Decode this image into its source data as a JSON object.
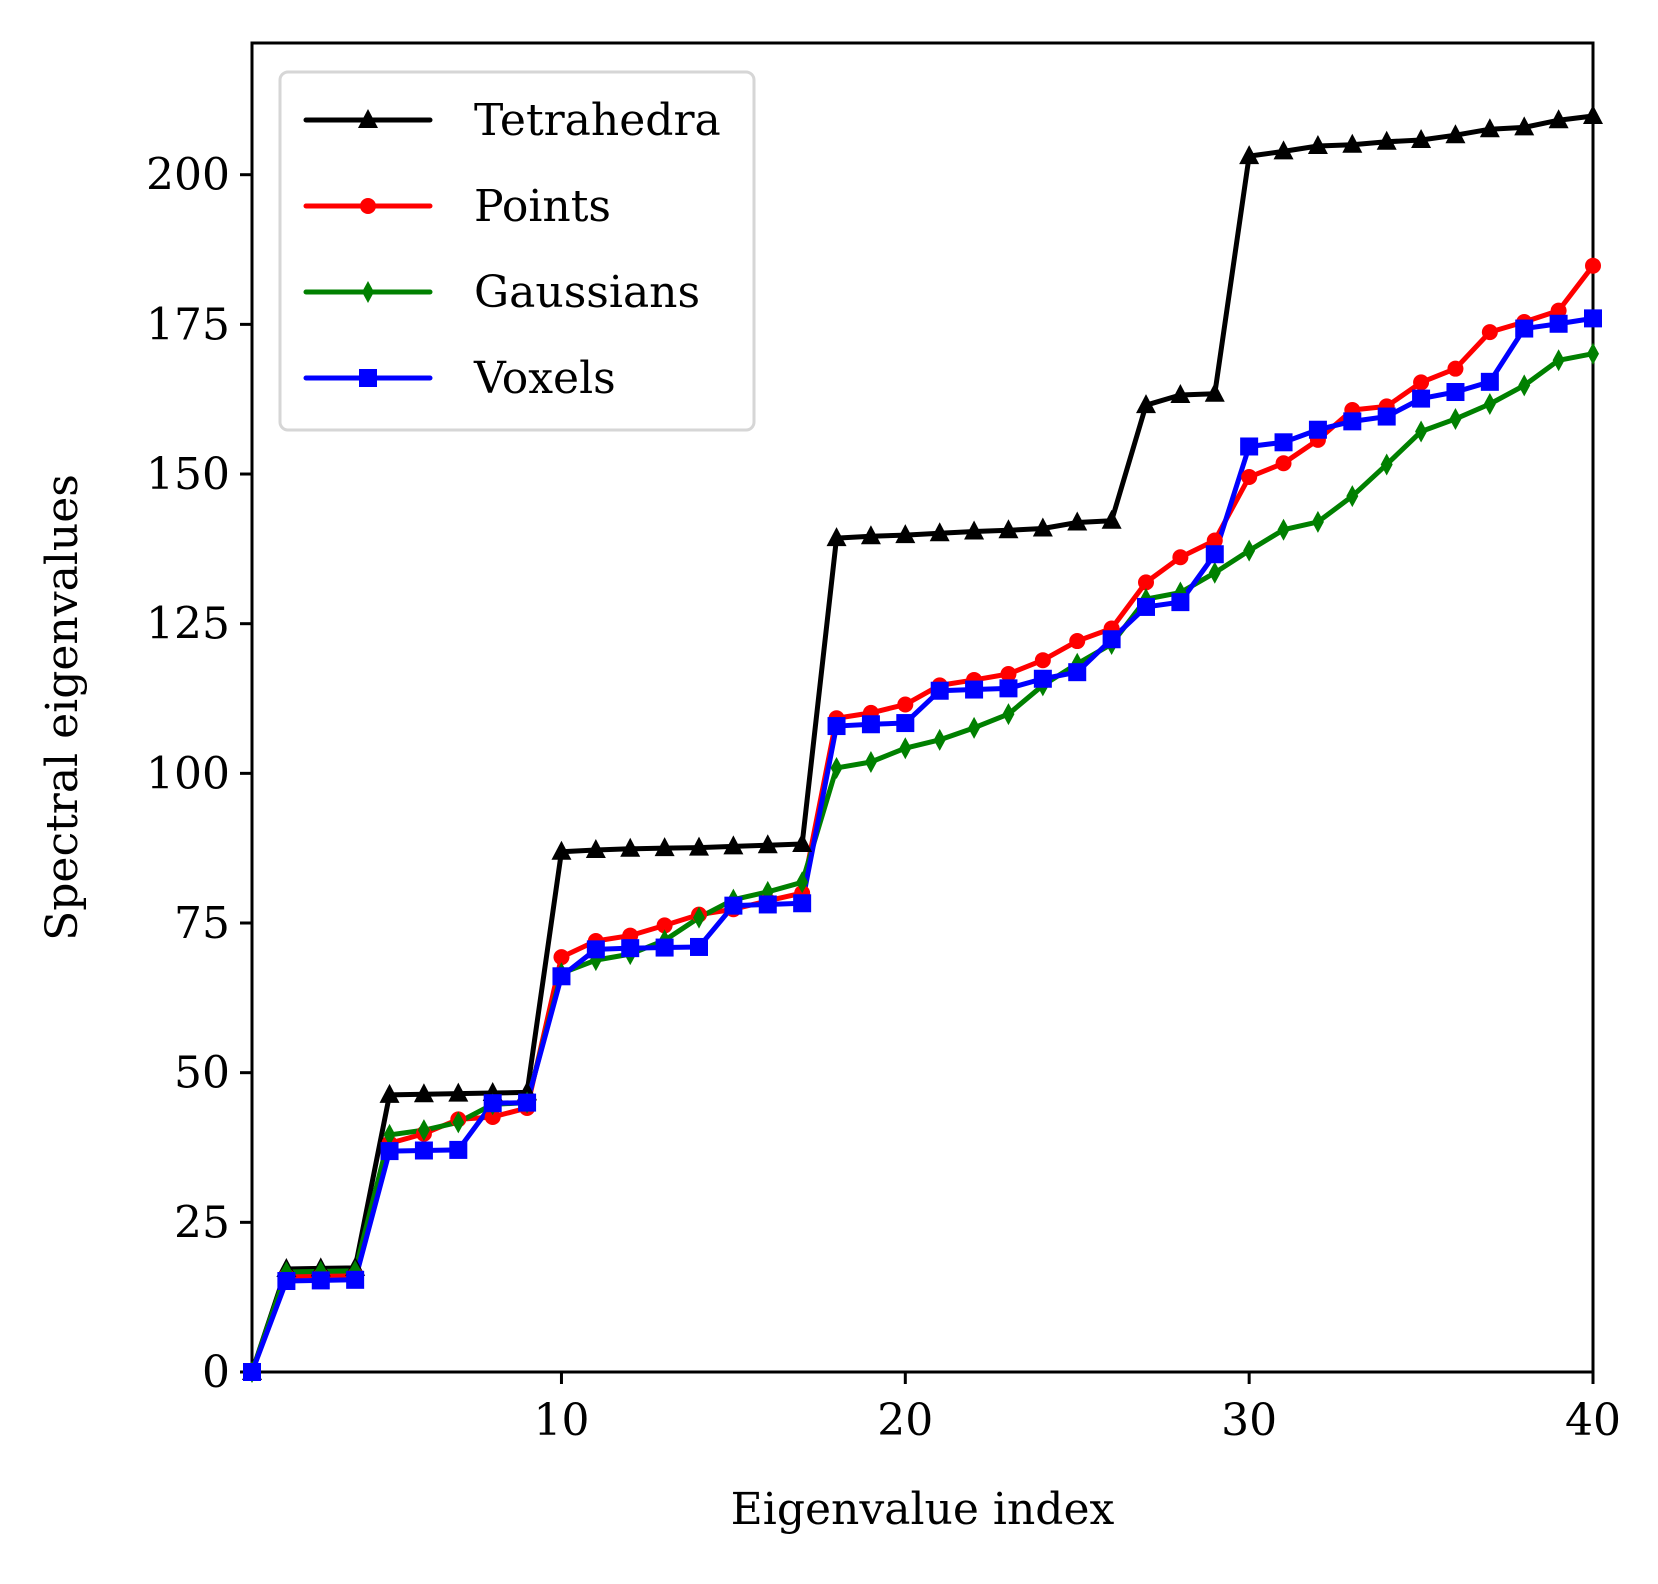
{
  "chart_data": {
    "type": "line",
    "title": "",
    "xlabel": "Eigenvalue index",
    "ylabel": "Spectral eigenvalues",
    "xlim": [
      1,
      40
    ],
    "ylim": [
      0,
      222
    ],
    "xticks": [
      10,
      20,
      30,
      40
    ],
    "yticks": [
      0,
      25,
      50,
      75,
      100,
      125,
      150,
      175,
      200
    ],
    "xtick_labels": [
      "10",
      "20",
      "30",
      "40"
    ],
    "ytick_labels": [
      "0",
      "25",
      "50",
      "75",
      "100",
      "125",
      "150",
      "175",
      "200"
    ],
    "legend_position": "top-left",
    "grid": false,
    "x": [
      1,
      2,
      3,
      4,
      5,
      6,
      7,
      8,
      9,
      10,
      11,
      12,
      13,
      14,
      15,
      16,
      17,
      18,
      19,
      20,
      21,
      22,
      23,
      24,
      25,
      26,
      27,
      28,
      29,
      30,
      31,
      32,
      33,
      34,
      35,
      36,
      37,
      38,
      39,
      40
    ],
    "series": [
      {
        "name": "Tetrahedra",
        "color": "#000000",
        "marker": "triangle",
        "values": [
          0.0,
          17.2,
          17.3,
          17.4,
          46.3,
          46.4,
          46.5,
          46.6,
          46.7,
          86.9,
          87.2,
          87.4,
          87.5,
          87.6,
          87.8,
          88.0,
          88.2,
          139.3,
          139.6,
          139.8,
          140.1,
          140.4,
          140.6,
          140.9,
          141.9,
          142.2,
          161.5,
          163.2,
          163.4,
          203.1,
          203.9,
          204.8,
          205.0,
          205.5,
          205.8,
          206.6,
          207.6,
          207.9,
          209.1,
          209.8
        ]
      },
      {
        "name": "Points",
        "color": "#ff0000",
        "marker": "circle",
        "values": [
          0.0,
          16.0,
          16.1,
          16.2,
          38.2,
          39.8,
          42.2,
          42.6,
          44.1,
          69.3,
          72.0,
          72.9,
          74.6,
          76.4,
          77.3,
          78.7,
          80.0,
          109.2,
          110.1,
          111.5,
          114.7,
          115.6,
          116.6,
          118.9,
          122.1,
          124.2,
          131.9,
          136.1,
          138.9,
          149.5,
          151.8,
          155.7,
          160.7,
          161.3,
          165.3,
          167.6,
          173.7,
          175.4,
          177.3,
          184.8
        ]
      },
      {
        "name": "Gaussians",
        "color": "#008000",
        "marker": "diamond",
        "values": [
          0.0,
          16.7,
          16.8,
          16.9,
          39.6,
          40.4,
          41.7,
          44.7,
          45.0,
          66.6,
          68.8,
          69.8,
          72.1,
          75.9,
          78.9,
          80.2,
          81.8,
          100.9,
          101.9,
          104.2,
          105.6,
          107.6,
          109.9,
          114.7,
          118.3,
          121.6,
          129.1,
          130.2,
          133.5,
          137.2,
          140.7,
          142.0,
          146.3,
          151.6,
          157.1,
          159.2,
          161.7,
          164.8,
          169.0,
          170.1
        ]
      },
      {
        "name": "Voxels",
        "color": "#0000ff",
        "marker": "square",
        "values": [
          0.0,
          15.2,
          15.3,
          15.4,
          36.9,
          37.0,
          37.1,
          44.9,
          45.0,
          66.1,
          70.6,
          70.8,
          70.9,
          71.0,
          77.9,
          78.1,
          78.3,
          107.9,
          108.2,
          108.4,
          113.8,
          114.0,
          114.2,
          115.8,
          116.9,
          122.4,
          127.8,
          128.6,
          136.6,
          154.6,
          155.3,
          157.4,
          158.8,
          159.6,
          162.6,
          163.7,
          165.4,
          174.3,
          175.1,
          176.0
        ]
      }
    ]
  }
}
